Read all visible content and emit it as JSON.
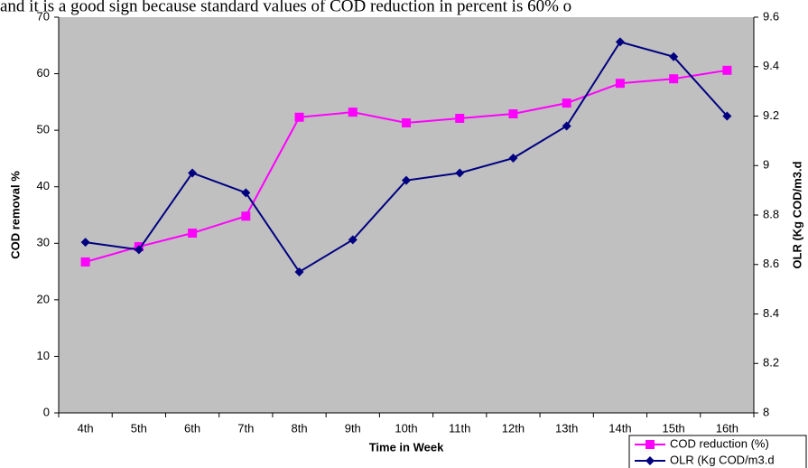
{
  "caption": "and it is a good sign because standard values of COD reduction in percent  is 60% o",
  "chart_data": {
    "type": "line",
    "xlabel": "Time in Week",
    "ylabel": "COD removal %",
    "y2label": "OLR (Kg COD/m3.d",
    "categories": [
      "4th",
      "5th",
      "6th",
      "7th",
      "8th",
      "9th",
      "10th",
      "11th",
      "12th",
      "13th",
      "14th",
      "15th",
      "16th"
    ],
    "series": [
      {
        "name": "COD reduction (%)",
        "color": "#ff00ff",
        "marker": "square",
        "values": [
          26.7,
          29.4,
          31.8,
          34.8,
          52.3,
          53.2,
          51.3,
          52.1,
          52.9,
          54.8,
          58.3,
          59.1,
          60.6
        ]
      },
      {
        "name": "OLR (Kg COD/m3.d",
        "color": "#000080",
        "marker": "diamond",
        "axis": "y2",
        "values": [
          8.69,
          8.66,
          8.97,
          8.89,
          8.57,
          8.7,
          8.94,
          8.97,
          9.03,
          9.16,
          9.5,
          9.44,
          9.2
        ]
      }
    ],
    "ylim": [
      0,
      70
    ],
    "yticks": [
      0,
      10,
      20,
      30,
      40,
      50,
      60,
      70
    ],
    "y2lim": [
      8,
      9.6
    ],
    "y2ticks": [
      8,
      8.2,
      8.4,
      8.6,
      8.8,
      9,
      9.2,
      9.4,
      9.6
    ],
    "grid": false,
    "legend": "lower right"
  }
}
